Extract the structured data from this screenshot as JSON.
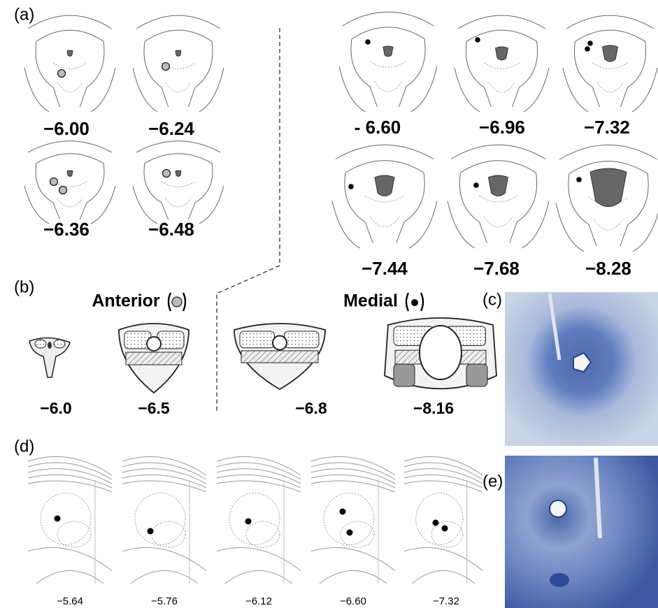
{
  "panels": {
    "a": {
      "label": "(a)",
      "sections": [
        "−6.00",
        "−6.24",
        "−6.36",
        "−6.48",
        "- 6.60",
        "−6.96",
        "−7.32",
        "−7.44",
        "−7.68",
        "−8.28"
      ]
    },
    "b": {
      "label": "(b)",
      "groups": [
        "Anterior",
        "Medial"
      ],
      "sections": [
        "−6.0",
        "−6.5",
        "−6.8",
        "−8.16"
      ]
    },
    "c": {
      "label": "(c)"
    },
    "d": {
      "label": "(d)",
      "sections": [
        "−5.64",
        "−5.76",
        "−6.12",
        "−6.60",
        "−7.32"
      ]
    },
    "e": {
      "label": "(e)"
    }
  }
}
